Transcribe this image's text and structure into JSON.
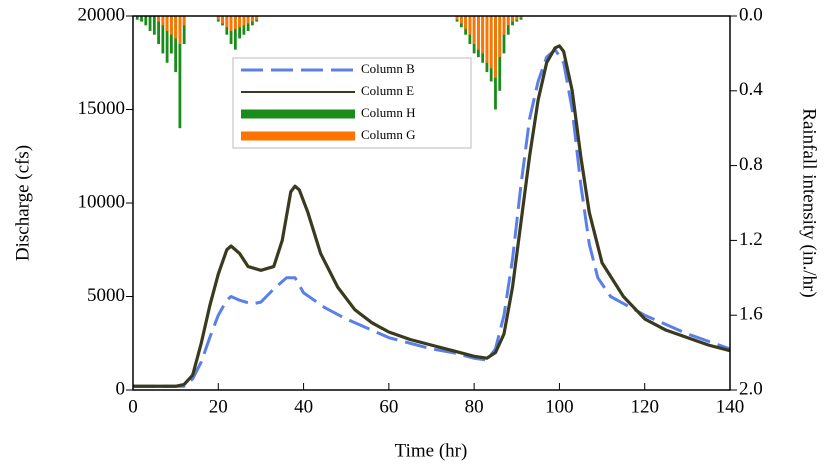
{
  "chart_data": {
    "type": "line",
    "xlabel": "Time (hr)",
    "ylabel": "Discharge (cfs)",
    "y2label": "Rainfall intensity (in./hr)",
    "xlim": [
      0,
      140
    ],
    "xticks": [
      0,
      20,
      40,
      60,
      80,
      100,
      120,
      140
    ],
    "ylim": [
      0,
      20000
    ],
    "yticks": [
      0,
      5000,
      10000,
      15000,
      20000
    ],
    "y2lim": [
      0,
      2
    ],
    "y2_inverted": true,
    "y2ticks": [
      {
        "value": 0,
        "label": "0.0"
      },
      0.4,
      0.8,
      1.2,
      1.6,
      {
        "value": 2,
        "label": "2.0"
      }
    ],
    "legend": "upper left",
    "series": [
      {
        "name": "Column B",
        "type": "line",
        "dashed": true,
        "color": "#5b7fe8",
        "axis": "y",
        "x": [
          0,
          12,
          14,
          16,
          18,
          20,
          22,
          23,
          25,
          28,
          30,
          33,
          36,
          38,
          40,
          45,
          50,
          55,
          60,
          65,
          70,
          75,
          80,
          83,
          85,
          87,
          89,
          91,
          93,
          95,
          97,
          99,
          101,
          103,
          105,
          107,
          109,
          112,
          120,
          130,
          140
        ],
        "values": [
          200,
          200,
          600,
          1500,
          2800,
          4000,
          4800,
          5000,
          4800,
          4600,
          4700,
          5400,
          6000,
          6000,
          5200,
          4400,
          3800,
          3300,
          2800,
          2500,
          2200,
          2000,
          1700,
          1600,
          2200,
          4000,
          7000,
          11000,
          14500,
          16500,
          17800,
          18200,
          17500,
          15000,
          11000,
          7800,
          6000,
          5000,
          4000,
          3000,
          2200
        ]
      },
      {
        "name": "Column E",
        "type": "line",
        "dashed": false,
        "color": "#3a3a1e",
        "axis": "y",
        "x": [
          0,
          10,
          12,
          14,
          16,
          18,
          20,
          22,
          23,
          25,
          27,
          30,
          33,
          35,
          37,
          38,
          39,
          41,
          44,
          48,
          52,
          56,
          60,
          65,
          70,
          75,
          80,
          83,
          85,
          87,
          89,
          91,
          93,
          95,
          97,
          99,
          100,
          101,
          103,
          105,
          107,
          110,
          115,
          120,
          125,
          130,
          135,
          140
        ],
        "values": [
          200,
          200,
          300,
          800,
          2500,
          4500,
          6200,
          7500,
          7700,
          7300,
          6600,
          6400,
          6600,
          8000,
          10600,
          10900,
          10700,
          9500,
          7300,
          5500,
          4300,
          3600,
          3100,
          2700,
          2400,
          2100,
          1800,
          1700,
          2000,
          3000,
          5500,
          9000,
          12500,
          15500,
          17500,
          18300,
          18400,
          18100,
          16000,
          12500,
          9500,
          6800,
          5000,
          3800,
          3200,
          2800,
          2400,
          2100
        ]
      },
      {
        "name": "Column H",
        "type": "bar",
        "color": "#1a8c1a",
        "axis": "y2",
        "x": [
          1,
          2,
          3,
          4,
          5,
          6,
          7,
          8,
          9,
          10,
          11,
          12,
          20,
          21,
          22,
          23,
          24,
          25,
          26,
          27,
          28,
          29,
          76,
          77,
          78,
          79,
          80,
          81,
          82,
          83,
          84,
          85,
          86,
          87,
          88,
          89,
          90,
          91
        ],
        "values": [
          0.02,
          0.03,
          0.05,
          0.08,
          0.1,
          0.15,
          0.2,
          0.25,
          0.2,
          0.3,
          0.6,
          0.15,
          0.03,
          0.05,
          0.1,
          0.15,
          0.18,
          0.12,
          0.1,
          0.08,
          0.05,
          0.03,
          0.03,
          0.06,
          0.1,
          0.15,
          0.2,
          0.22,
          0.25,
          0.3,
          0.35,
          0.5,
          0.4,
          0.2,
          0.1,
          0.05,
          0.03,
          0.02
        ]
      },
      {
        "name": "Column G",
        "type": "bar",
        "color": "#ff7300",
        "axis": "y2",
        "x": [
          6,
          7,
          8,
          9,
          10,
          11,
          12,
          20,
          21,
          22,
          23,
          24,
          25,
          26,
          27,
          28,
          29,
          76,
          77,
          78,
          79,
          80,
          81,
          82,
          83,
          84,
          85,
          86,
          87,
          88,
          89,
          90,
          91
        ],
        "values": [
          0.03,
          0.05,
          0.08,
          0.1,
          0.12,
          0.15,
          0.05,
          0.02,
          0.04,
          0.06,
          0.08,
          0.07,
          0.06,
          0.05,
          0.04,
          0.03,
          0.02,
          0.02,
          0.04,
          0.07,
          0.1,
          0.15,
          0.18,
          0.2,
          0.25,
          0.28,
          0.33,
          0.22,
          0.1,
          0.05,
          0.03,
          0.02,
          0.01
        ]
      }
    ]
  }
}
